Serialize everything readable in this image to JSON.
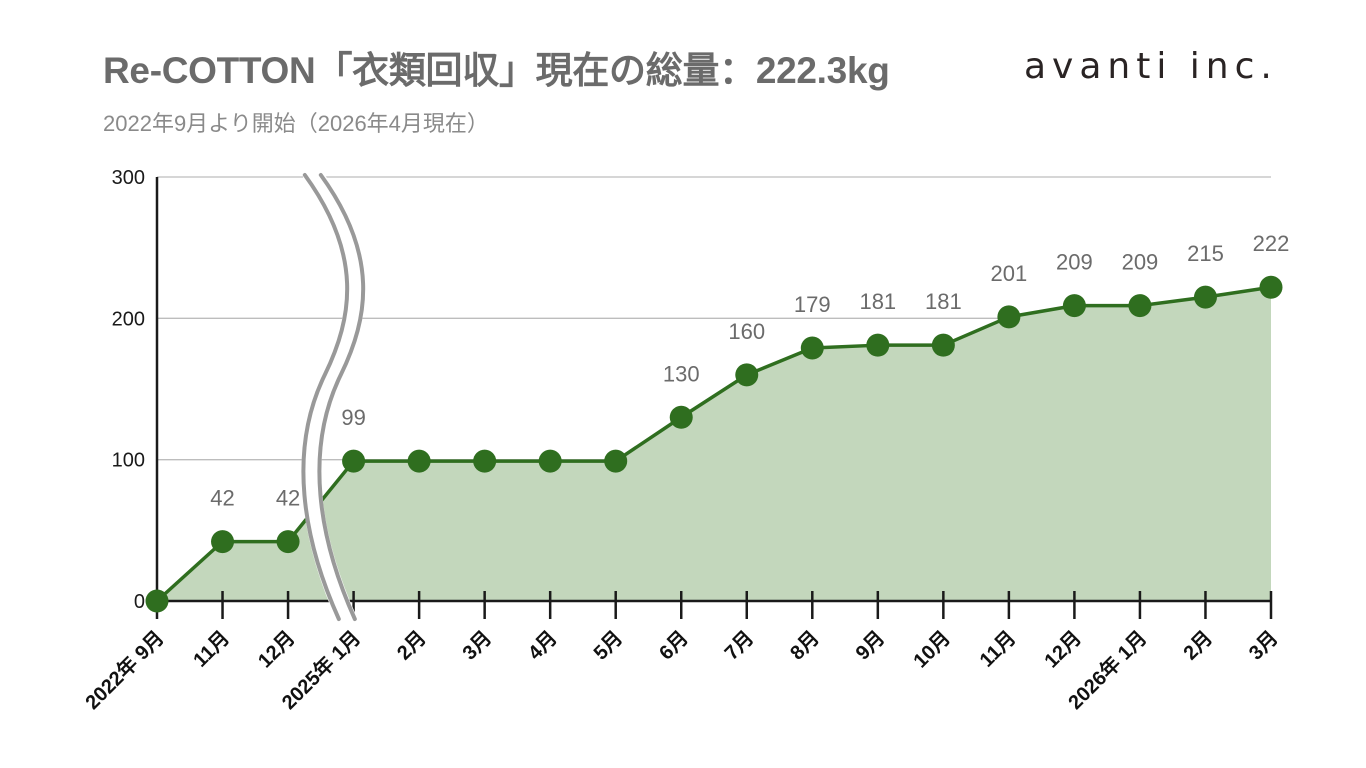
{
  "header": {
    "title": "Re-COTTON「衣類回収」現在の総量：222.3kg",
    "subtitle": "2022年9月より開始（2026年4月現在）",
    "logo_text": "avanti inc."
  },
  "colors": {
    "line": "#2f6e1f",
    "marker": "#2f6e1f",
    "fill": "#c3d7bc",
    "grid": "#bdbdbd",
    "data_label": "#6b6b6b",
    "axis": "#1a1a1a",
    "break_mark": "#999999"
  },
  "chart_data": {
    "type": "area",
    "title": "Re-COTTON「衣類回収」現在の総量：222.3kg",
    "xlabel": "",
    "ylabel": "",
    "ylim": [
      0,
      300
    ],
    "yticks": [
      0,
      100,
      200,
      300
    ],
    "grid": true,
    "axis_break": "between 12月 and 2025年 1月",
    "categories": [
      "2022年 9月",
      "11月",
      "12月",
      "2025年 1月",
      "2月",
      "3月",
      "4月",
      "5月",
      "6月",
      "7月",
      "8月",
      "9月",
      "10月",
      "11月",
      "12月",
      "2026年 1月",
      "2月",
      "3月"
    ],
    "series": [
      {
        "values": [
          0,
          42,
          42,
          99,
          99,
          99,
          99,
          99,
          130,
          160,
          179,
          181,
          181,
          201,
          209,
          209,
          215,
          222
        ],
        "labels": [
          "",
          "42",
          "42",
          "99",
          "",
          "",
          "",
          "",
          "130",
          "160",
          "179",
          "181",
          "181",
          "201",
          "209",
          "209",
          "215",
          "222"
        ]
      }
    ]
  }
}
